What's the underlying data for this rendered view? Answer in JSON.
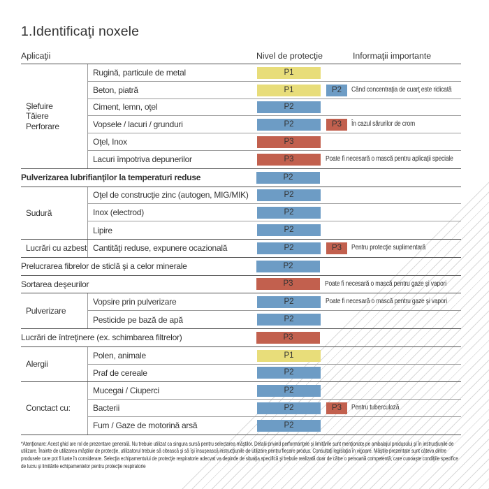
{
  "title": "1.Identificaţi noxele",
  "columns": {
    "applications": "Aplicaţii",
    "protection": "Nivel de protecţie",
    "info": "Informaţii importante"
  },
  "badge_colors": {
    "P1": "#e8dd7a",
    "P2": "#6d9cc5",
    "P3": "#c2604e"
  },
  "line_colors": {
    "strong": "#4f4f4f",
    "light": "#9b9b9b",
    "hatch": "#d9d9d9"
  },
  "table": {
    "sections": [
      {
        "group": [
          "Şlefuire",
          "Tăiere",
          "Perforare"
        ],
        "rows": [
          {
            "label": "Rugină, particule de metal",
            "levels": [
              "P1"
            ],
            "note": ""
          },
          {
            "label": "Beton, piatră",
            "levels": [
              "P1",
              "P2"
            ],
            "note": "Când concentraţia de cuarţ este ridicată"
          },
          {
            "label": "Ciment, lemn, oţel",
            "levels": [
              "P2"
            ],
            "note": ""
          },
          {
            "label": "Vopsele / lacuri / grunduri",
            "levels": [
              "P2",
              "P3"
            ],
            "note": "În cazul sărurilor de crom"
          },
          {
            "label": "Oţel, Inox",
            "levels": [
              "P3"
            ],
            "note": ""
          },
          {
            "label": "Lacuri împotriva depunerilor",
            "levels": [
              "P3"
            ],
            "note": "Poate fi necesară o mască pentru aplicaţii speciale"
          }
        ]
      },
      {
        "group": null,
        "rows": [
          {
            "label": "Pulverizarea lubrifianţilor la temperaturi reduse",
            "bold": true,
            "levels": [
              "P2"
            ],
            "note": ""
          }
        ]
      },
      {
        "group": [
          "Sudură"
        ],
        "rows": [
          {
            "label": "Oţel de construcţie zinc (autogen, MIG/MIK)",
            "levels": [
              "P2"
            ],
            "note": ""
          },
          {
            "label": "Inox (electrod)",
            "levels": [
              "P2"
            ],
            "note": ""
          },
          {
            "label": "Lipire",
            "levels": [
              "P2"
            ],
            "note": ""
          }
        ]
      },
      {
        "group": [
          "Lucrări cu azbest"
        ],
        "rows": [
          {
            "label": "Cantităţi reduse, expunere ocazională",
            "levels": [
              "P2",
              "P3"
            ],
            "note": "Pentru protecţie suplimentară"
          }
        ]
      },
      {
        "group": null,
        "rows": [
          {
            "label": "Prelucrarea fibrelor de sticlă şi a celor minerale",
            "levels": [
              "P2"
            ],
            "note": ""
          }
        ]
      },
      {
        "group": null,
        "rows": [
          {
            "label": "Sortarea deşeurilor",
            "levels": [
              "P3"
            ],
            "note": "Poate fi necesară o mască pentru gaze şi vapori"
          }
        ]
      },
      {
        "group": [
          "Pulverizare"
        ],
        "rows": [
          {
            "label": "Vopsire prin pulverizare",
            "levels": [
              "P2"
            ],
            "note": "Poate fi necesară o mască pentru gaze şi vapori"
          },
          {
            "label": "Pesticide pe bază de apă",
            "levels": [
              "P2"
            ],
            "note": ""
          }
        ]
      },
      {
        "group": null,
        "rows": [
          {
            "label": "Lucrări de întreţinere (ex. schimbarea filtrelor)",
            "levels": [
              "P3"
            ],
            "note": ""
          }
        ]
      },
      {
        "group": [
          "Alergii"
        ],
        "rows": [
          {
            "label": "Polen, animale",
            "levels": [
              "P1"
            ],
            "note": ""
          },
          {
            "label": "Praf de cereale",
            "levels": [
              "P2"
            ],
            "note": ""
          }
        ]
      },
      {
        "group": [
          "Conctact cu:"
        ],
        "rows": [
          {
            "label": "Mucegai / Ciuperci",
            "levels": [
              "P2"
            ],
            "note": ""
          },
          {
            "label": "Bacterii",
            "levels": [
              "P2",
              "P3"
            ],
            "note": "Pentru tuberculoză"
          },
          {
            "label": "Fum / Gaze de motorină arsă",
            "levels": [
              "P2"
            ],
            "note": ""
          }
        ]
      }
    ]
  },
  "footnote": "*Atenţionare: Acest ghid are rol de prezentare generală. Nu trebuie utilizat ca singura sursă pentru selectarea măştilor. Detalii privind performanţele şi limitările sunt menţionate pe ambalajul produsului şi în instrucţiunile de utilizare. Înainte de utilizarea măştilor de protecţie, utilizatorul trebuie să citească şi să îşi însuşească instrucţiunile de utilizare pentru fiecare produs. Consultaţi legislaţia în vigoare. Măştile prezentate sunt câteva dintre produsele care pot fi luate în considerare. Selecţia echipamentului de protecţie respiratorie adecvat va depinde de situaţia specifică şi trebuie realizată doar de către o persoană competentă, care cunoaşte condiţiile specifice de lucru şi limitările echipamentelor pentru protecţie respiratorie"
}
